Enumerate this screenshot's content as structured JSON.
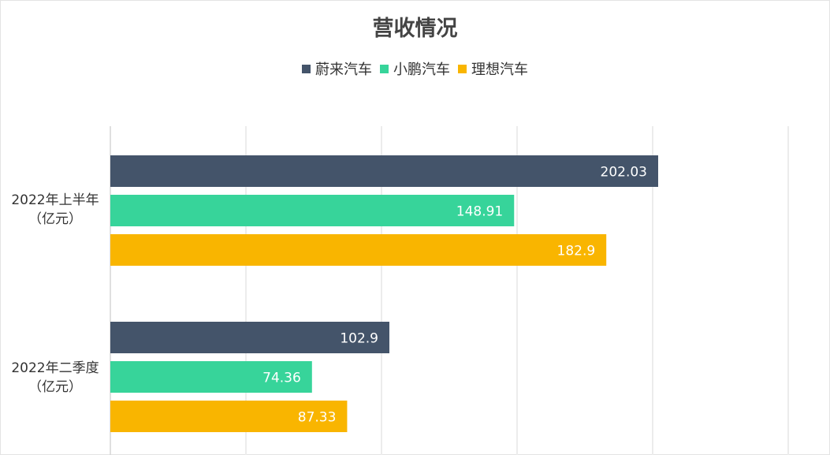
{
  "chart_data": {
    "type": "bar",
    "orientation": "horizontal",
    "title": "营收情况",
    "categories": [
      {
        "line1": "2022年上半年",
        "line2": "（亿元）"
      },
      {
        "line1": "2022年二季度",
        "line2": "（亿元）"
      }
    ],
    "series": [
      {
        "name": "蔚来汽车",
        "color": "#44546a",
        "values": [
          202.03,
          102.9
        ],
        "labels": [
          "202.03",
          "102.9"
        ]
      },
      {
        "name": "小鹏汽车",
        "color": "#37d49a",
        "values": [
          148.91,
          74.36
        ],
        "labels": [
          "148.91",
          "74.36"
        ]
      },
      {
        "name": "理想汽车",
        "color": "#f9b500",
        "values": [
          182.9,
          87.33
        ],
        "labels": [
          "182.9",
          "87.33"
        ]
      }
    ],
    "xlim": [
      0,
      250
    ],
    "grid": true,
    "legend": "top-center"
  }
}
